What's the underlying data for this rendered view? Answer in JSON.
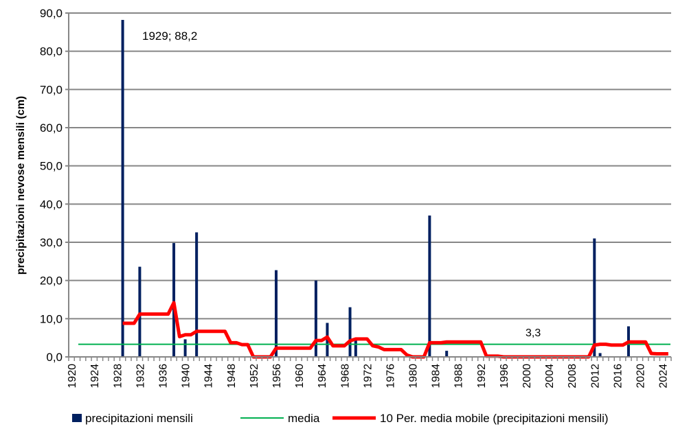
{
  "chart_data": {
    "type": "bar+line",
    "ylabel": "precipitazioni nevose mensili (cm)",
    "xlabel": "",
    "ylim": [
      0,
      90
    ],
    "yticks": [
      "0,0",
      "10,0",
      "20,0",
      "30,0",
      "40,0",
      "50,0",
      "60,0",
      "70,0",
      "80,0",
      "90,0"
    ],
    "xrange": [
      1920,
      2025
    ],
    "xtick_step": 4,
    "grid": "horizontal",
    "legend_position": "bottom",
    "colors": {
      "bars": "#002060",
      "media": "#00b050",
      "moving_avg": "#ff0000",
      "grid": "#868686"
    },
    "series": [
      {
        "name": "precipitazioni mensili",
        "type": "bar",
        "points": [
          {
            "x": 1929,
            "y": 88.2
          },
          {
            "x": 1932,
            "y": 23.6
          },
          {
            "x": 1938,
            "y": 29.8
          },
          {
            "x": 1940,
            "y": 4.6
          },
          {
            "x": 1942,
            "y": 32.6
          },
          {
            "x": 1956,
            "y": 22.7
          },
          {
            "x": 1963,
            "y": 20.0
          },
          {
            "x": 1965,
            "y": 8.9
          },
          {
            "x": 1969,
            "y": 13.0
          },
          {
            "x": 1970,
            "y": 4.7
          },
          {
            "x": 1983,
            "y": 37.0
          },
          {
            "x": 1986,
            "y": 1.6
          },
          {
            "x": 2012,
            "y": 31.0
          },
          {
            "x": 2013,
            "y": 1.0
          },
          {
            "x": 2018,
            "y": 8.0
          }
        ]
      },
      {
        "name": "media",
        "type": "line",
        "value": 3.3
      },
      {
        "name": "10 Per. media mobile (precipitazioni mensili)",
        "type": "line",
        "x_start": 1929,
        "values": [
          8.8,
          8.8,
          8.8,
          11.2,
          11.2,
          11.2,
          11.2,
          11.2,
          11.2,
          14.2,
          5.3,
          5.8,
          5.8,
          6.7,
          6.7,
          6.7,
          6.7,
          6.7,
          6.7,
          3.7,
          3.7,
          3.2,
          3.2,
          0,
          0,
          0,
          0,
          2.3,
          2.3,
          2.3,
          2.3,
          2.3,
          2.3,
          2.3,
          4.3,
          4.3,
          5.2,
          2.9,
          2.9,
          2.9,
          4.2,
          4.7,
          4.7,
          4.7,
          2.9,
          2.6,
          1.9,
          1.9,
          1.9,
          1.9,
          0.5,
          0,
          0,
          0,
          3.7,
          3.7,
          3.7,
          3.9,
          3.9,
          3.9,
          3.9,
          3.9,
          3.9,
          3.9,
          0.2,
          0.2,
          0.2,
          0,
          0,
          0,
          0,
          0,
          0,
          0,
          0,
          0,
          0,
          0,
          0,
          0,
          0,
          0,
          0,
          3.1,
          3.3,
          3.3,
          3.1,
          3.1,
          3.1,
          3.9,
          3.9,
          3.9,
          3.9,
          0.9,
          0.8,
          0.8,
          0.8
        ]
      }
    ],
    "annotations": [
      {
        "text": "1929; 88,2",
        "x": 1929,
        "y": 88.2
      },
      {
        "text": "3,3",
        "x": 2000,
        "y": 3.3
      }
    ]
  }
}
